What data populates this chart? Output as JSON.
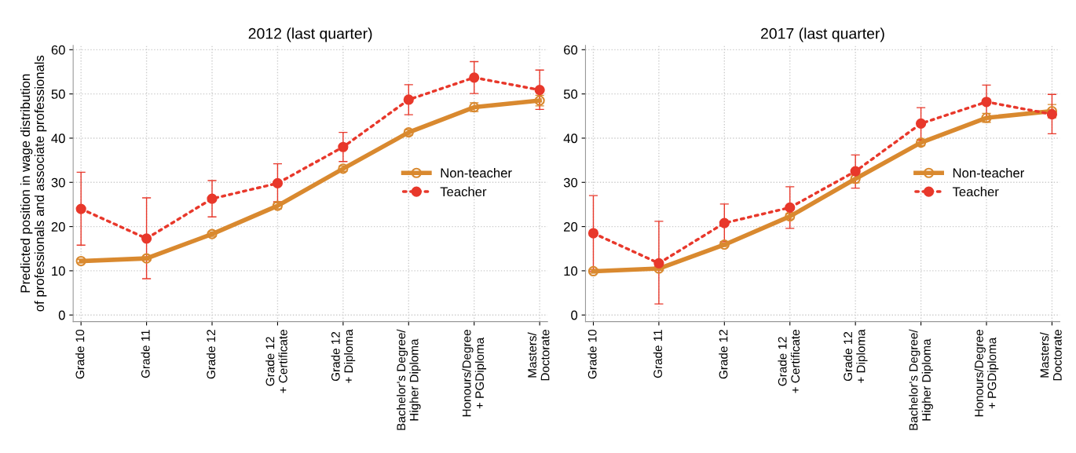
{
  "chart_data": [
    {
      "type": "line",
      "title": "2012 (last quarter)",
      "ylabel": "Predicted position in wage distribution\nof professionals and associate professionals",
      "categories": [
        "Grade 10",
        "Grade 11",
        "Grade 12",
        "Grade 12\n+ Certificate",
        "Grade 12\n+ Diploma",
        "Bachelor's Degree/\nHigher Diploma",
        "Honours/Degree\n+ PGDiploma",
        "Masters/\nDoctorate"
      ],
      "series": [
        {
          "name": "Non-teacher",
          "color": "#d9892f",
          "marker": "circle",
          "line_style": "solid",
          "values": [
            12.2,
            12.8,
            18.3,
            24.7,
            33.1,
            41.3,
            47.0,
            48.5
          ],
          "errors": [
            0.4,
            0.4,
            0.5,
            0.7,
            0.6,
            0.6,
            1.0,
            1.2
          ]
        },
        {
          "name": "Teacher",
          "color": "#e8382b",
          "marker": "circle",
          "line_style": "dotted",
          "values": [
            24.0,
            17.3,
            26.3,
            29.8,
            38.0,
            48.7,
            53.7,
            50.9
          ],
          "errors": [
            [
              15.8,
              32.3
            ],
            [
              8.2,
              26.5
            ],
            [
              22.2,
              30.4
            ],
            [
              25.6,
              34.2
            ],
            [
              34.7,
              41.3
            ],
            [
              45.3,
              52.1
            ],
            [
              50.1,
              57.3
            ],
            [
              46.5,
              55.4
            ]
          ]
        }
      ],
      "ylim": [
        -1.5,
        61
      ],
      "yticks": [
        0,
        10,
        20,
        30,
        40,
        50,
        60
      ],
      "grid": true,
      "legend": "right"
    },
    {
      "type": "line",
      "title": "2017 (last quarter)",
      "categories": [
        "Grade 10",
        "Grade 11",
        "Grade 12",
        "Grade 12\n+ Certificate",
        "Grade 12\n+ Diploma",
        "Bachelor's Degree/\nHigher Diploma",
        "Honours/Degree\n+ PGDiploma",
        "Masters/\nDoctorate"
      ],
      "series": [
        {
          "name": "Non-teacher",
          "color": "#d9892f",
          "marker": "circle",
          "line_style": "solid",
          "values": [
            9.9,
            10.5,
            15.9,
            22.3,
            30.8,
            39.0,
            44.6,
            46.1
          ],
          "errors": [
            0.4,
            0.4,
            0.4,
            0.6,
            0.9,
            0.7,
            1.0,
            1.5
          ]
        },
        {
          "name": "Teacher",
          "color": "#e8382b",
          "marker": "circle",
          "line_style": "dotted",
          "values": [
            18.5,
            11.7,
            20.8,
            24.3,
            32.5,
            43.3,
            48.2,
            45.4
          ],
          "errors": [
            [
              9.9,
              27.0
            ],
            [
              2.5,
              21.2
            ],
            [
              16.6,
              25.1
            ],
            [
              19.6,
              29.0
            ],
            [
              28.7,
              36.2
            ],
            [
              39.5,
              46.9
            ],
            [
              44.3,
              52.0
            ],
            [
              41.0,
              49.9
            ]
          ]
        }
      ],
      "ylim": [
        -1.5,
        61
      ],
      "yticks": [
        0,
        10,
        20,
        30,
        40,
        50,
        60
      ],
      "grid": true,
      "legend": "right"
    }
  ]
}
